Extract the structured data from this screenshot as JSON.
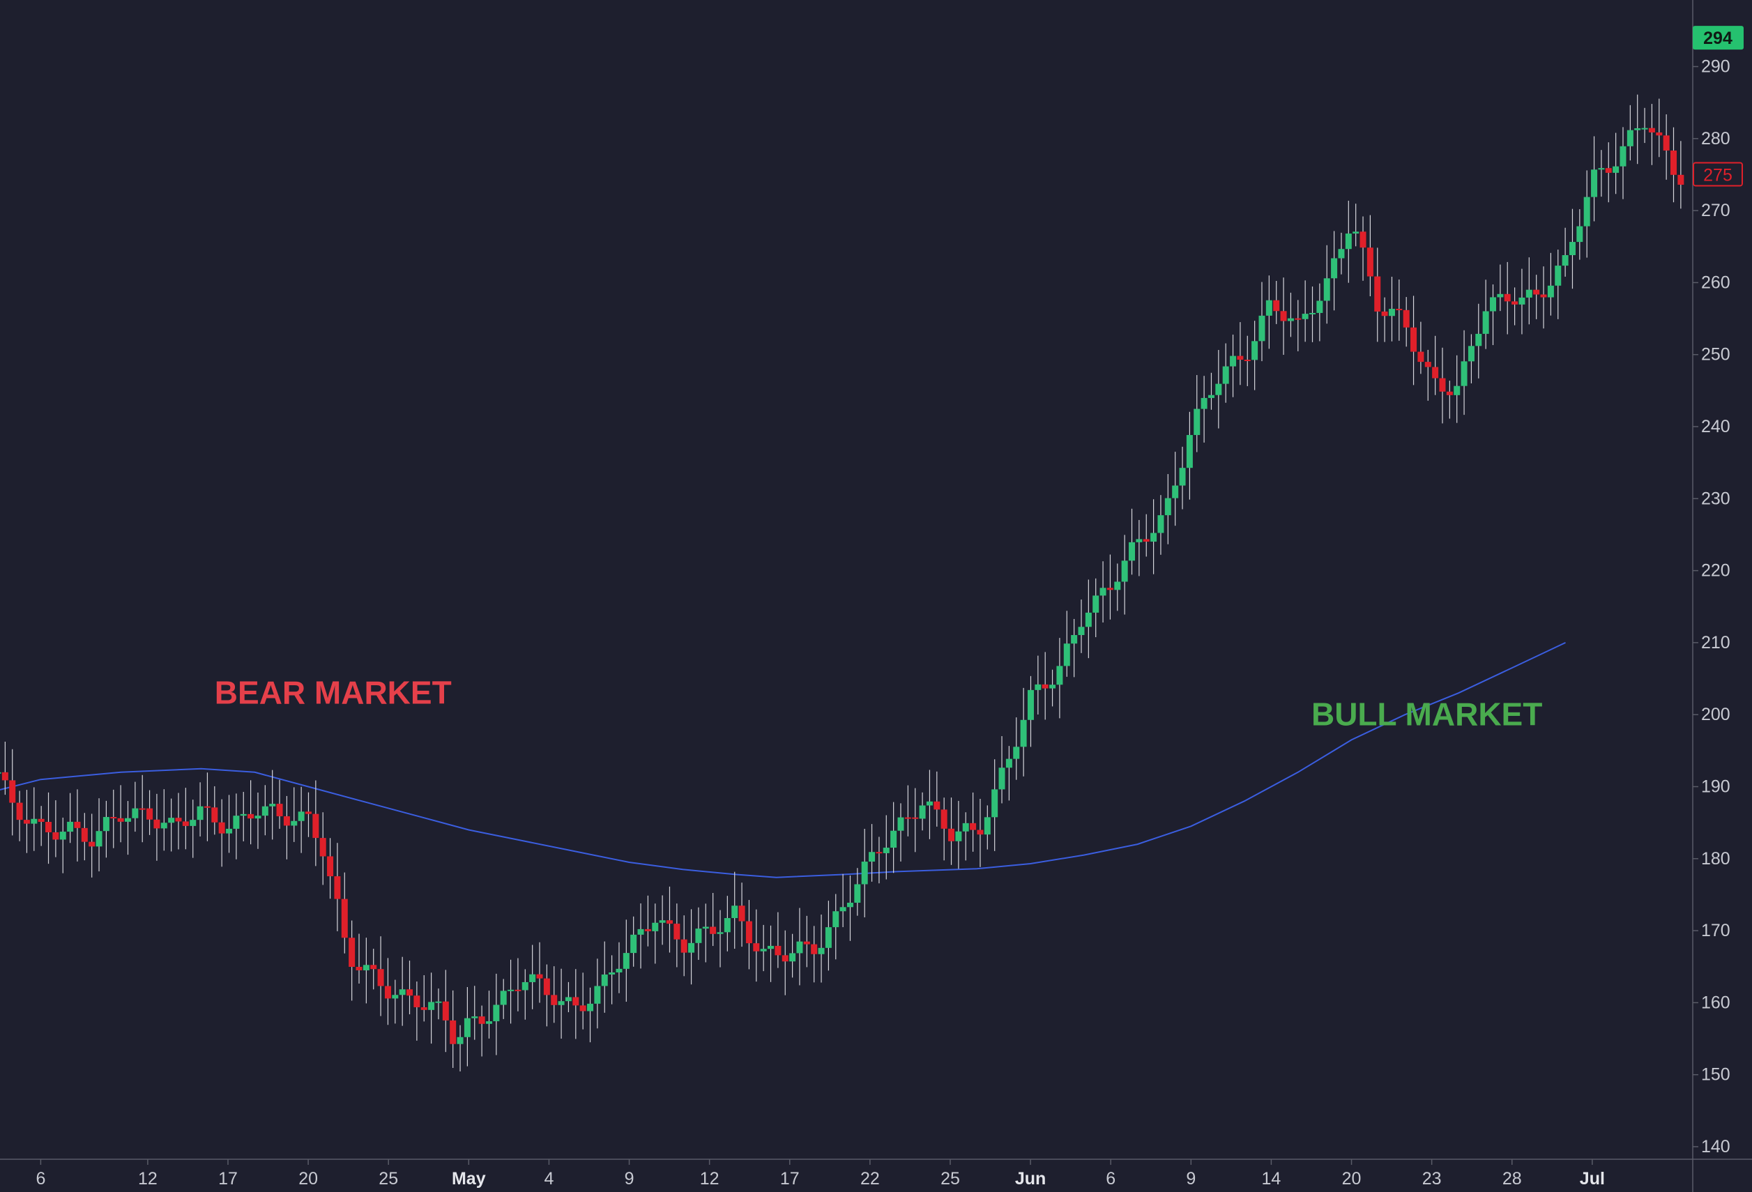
{
  "chart_data": {
    "type": "candlestick",
    "title": "",
    "xlabel": "",
    "ylabel": "",
    "ylim": [
      140,
      300
    ],
    "y_ticks": [
      140,
      150,
      160,
      170,
      180,
      190,
      200,
      210,
      220,
      230,
      240,
      250,
      260,
      270,
      280,
      290,
      300
    ],
    "x_tick_labels": [
      {
        "label": "6",
        "day": 3,
        "bold": false
      },
      {
        "label": "12",
        "day": 7,
        "bold": false
      },
      {
        "label": "17",
        "day": 10,
        "bold": false
      },
      {
        "label": "20",
        "day": 13,
        "bold": false
      },
      {
        "label": "25",
        "day": 16,
        "bold": false
      },
      {
        "label": "May",
        "day": 19,
        "bold": true
      },
      {
        "label": "4",
        "day": 22,
        "bold": false
      },
      {
        "label": "9",
        "day": 25,
        "bold": false
      },
      {
        "label": "12",
        "day": 28,
        "bold": false
      },
      {
        "label": "17",
        "day": 31,
        "bold": false
      },
      {
        "label": "22",
        "day": 34,
        "bold": false
      },
      {
        "label": "25",
        "day": 37,
        "bold": false
      },
      {
        "label": "Jun",
        "day": 40,
        "bold": true
      },
      {
        "label": "6",
        "day": 43,
        "bold": false
      },
      {
        "label": "9",
        "day": 46,
        "bold": false
      },
      {
        "label": "14",
        "day": 49,
        "bold": false
      },
      {
        "label": "20",
        "day": 52,
        "bold": false
      },
      {
        "label": "23",
        "day": 55,
        "bold": false
      },
      {
        "label": "28",
        "day": 58,
        "bold": false
      },
      {
        "label": "Jul",
        "day": 61,
        "bold": true
      }
    ],
    "x_day_range": [
      1.4,
      64.5
    ],
    "bull_anchors": [
      [
        1.4,
        192
      ],
      [
        2,
        186
      ],
      [
        3,
        184
      ],
      [
        4,
        185
      ],
      [
        5,
        182
      ],
      [
        6,
        186
      ],
      [
        7,
        187
      ],
      [
        8,
        184
      ],
      [
        9,
        186
      ],
      [
        10,
        185
      ],
      [
        11,
        187
      ],
      [
        12,
        185
      ],
      [
        13,
        186
      ],
      [
        13.5,
        183
      ],
      [
        14,
        175
      ],
      [
        14.5,
        166
      ],
      [
        15,
        164
      ],
      [
        16,
        162
      ],
      [
        17,
        161
      ],
      [
        18,
        158
      ],
      [
        18.5,
        154
      ],
      [
        19,
        157
      ],
      [
        20,
        160
      ],
      [
        21,
        163
      ],
      [
        22,
        161
      ],
      [
        23,
        160
      ],
      [
        24,
        162
      ],
      [
        25,
        167
      ],
      [
        26,
        173
      ],
      [
        27,
        168
      ],
      [
        28,
        169
      ],
      [
        29,
        173
      ],
      [
        30,
        167
      ],
      [
        31,
        166
      ],
      [
        32,
        168
      ],
      [
        33,
        174
      ],
      [
        34,
        179
      ],
      [
        35,
        184
      ],
      [
        36,
        189
      ],
      [
        37,
        183
      ],
      [
        38,
        183
      ],
      [
        39,
        193
      ],
      [
        40,
        202
      ],
      [
        41,
        205
      ],
      [
        42,
        215
      ],
      [
        43,
        218
      ],
      [
        44,
        223
      ],
      [
        45,
        228
      ],
      [
        46,
        240
      ],
      [
        47,
        246
      ],
      [
        48,
        250
      ],
      [
        49,
        258
      ],
      [
        50,
        253
      ],
      [
        51,
        259
      ],
      [
        52,
        270
      ],
      [
        53,
        256
      ],
      [
        54,
        254
      ],
      [
        55,
        247
      ],
      [
        56,
        245
      ],
      [
        57,
        256
      ],
      [
        58,
        259
      ],
      [
        59,
        258
      ],
      [
        60,
        262
      ],
      [
        61,
        275
      ],
      [
        62,
        278
      ],
      [
        63,
        282
      ],
      [
        64,
        276
      ],
      [
        64.5,
        275
      ]
    ],
    "bear_anchors": [
      [
        1.4,
        190
      ],
      [
        3,
        189
      ],
      [
        4,
        190
      ],
      [
        6,
        190.8
      ],
      [
        8,
        191.5
      ],
      [
        9,
        191.2
      ],
      [
        10,
        190
      ],
      [
        12,
        187
      ],
      [
        14,
        184
      ],
      [
        16,
        181
      ],
      [
        18,
        179
      ],
      [
        19,
        178
      ],
      [
        20,
        177.5
      ],
      [
        22,
        177
      ],
      [
        24,
        177.3
      ],
      [
        26,
        177.7
      ],
      [
        28,
        178
      ],
      [
        30,
        178.2
      ],
      [
        32,
        178.5
      ],
      [
        34,
        179
      ],
      [
        36,
        179.5
      ],
      [
        38,
        180
      ],
      [
        40,
        180.5
      ],
      [
        42,
        181.5
      ],
      [
        44,
        183
      ],
      [
        46,
        185
      ],
      [
        48,
        188
      ],
      [
        50,
        191
      ],
      [
        52,
        194
      ],
      [
        54,
        197
      ],
      [
        56,
        200
      ],
      [
        58,
        204
      ],
      [
        60,
        207
      ],
      [
        62,
        209
      ],
      [
        64,
        209.5
      ],
      [
        64.5,
        210
      ]
    ],
    "ma_points": [
      [
        1.4,
        189.5
      ],
      [
        3,
        191
      ],
      [
        6,
        192
      ],
      [
        9,
        192.5
      ],
      [
        11,
        192
      ],
      [
        13,
        190
      ],
      [
        15,
        188
      ],
      [
        17,
        186
      ],
      [
        19,
        184
      ],
      [
        21,
        182.5
      ],
      [
        23,
        181
      ],
      [
        25,
        179.5
      ],
      [
        27,
        178.5
      ],
      [
        29,
        177.8
      ],
      [
        30.5,
        177.4
      ],
      [
        33,
        177.8
      ],
      [
        35,
        178.2
      ],
      [
        38,
        178.6
      ],
      [
        40,
        179.3
      ],
      [
        42,
        180.5
      ],
      [
        44,
        182
      ],
      [
        46,
        184.5
      ],
      [
        48,
        188
      ],
      [
        50,
        192
      ],
      [
        52,
        196.5
      ],
      [
        54,
        200
      ],
      [
        56,
        203
      ],
      [
        58,
        206.5
      ],
      [
        60,
        210
      ]
    ],
    "annotations": [
      {
        "text": "BEAR MARKET",
        "day": 9.5,
        "price": 201.5,
        "color": "#e5404a"
      },
      {
        "text": "BULL MARKET",
        "day": 50.5,
        "price": 198.5,
        "color": "#4aab4e"
      }
    ],
    "price_labels": [
      {
        "price": 294,
        "text": "294",
        "style": "filled",
        "color": "#25c16f"
      },
      {
        "price": 275,
        "text": "275",
        "style": "outline",
        "color": "#e0202a"
      }
    ],
    "colors": {
      "up": "#2fc078",
      "down": "#e0202a",
      "moving_average": "#3b5ee0",
      "background": "#1e1f2e",
      "axis": "#c8cad2"
    }
  }
}
